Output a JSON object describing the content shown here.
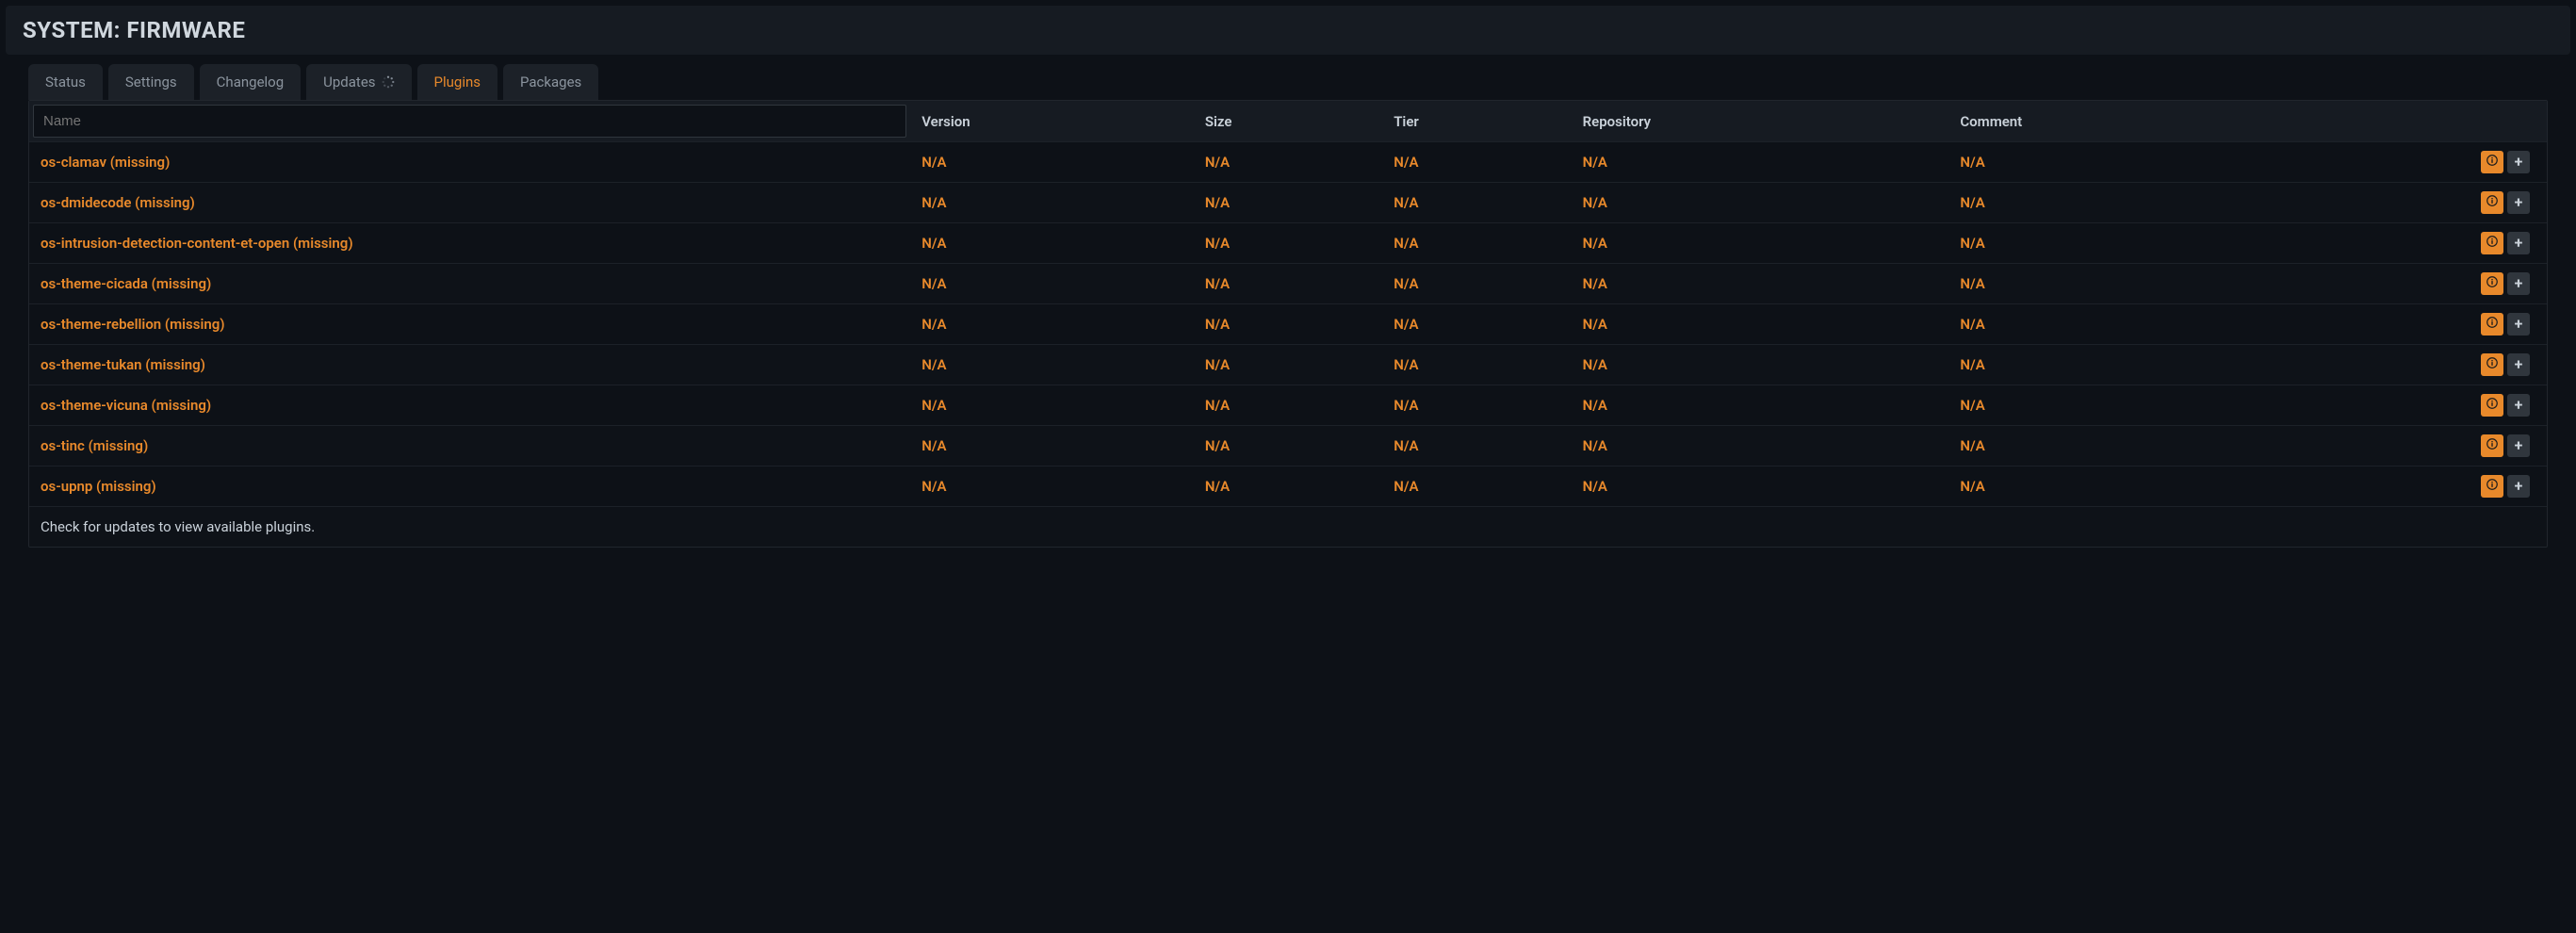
{
  "header": {
    "title": "SYSTEM: FIRMWARE"
  },
  "tabs": [
    {
      "id": "status",
      "label": "Status",
      "active": false,
      "loading": false
    },
    {
      "id": "settings",
      "label": "Settings",
      "active": false,
      "loading": false
    },
    {
      "id": "changelog",
      "label": "Changelog",
      "active": false,
      "loading": false
    },
    {
      "id": "updates",
      "label": "Updates",
      "active": false,
      "loading": true
    },
    {
      "id": "plugins",
      "label": "Plugins",
      "active": true,
      "loading": false
    },
    {
      "id": "packages",
      "label": "Packages",
      "active": false,
      "loading": false
    }
  ],
  "table": {
    "columns": {
      "name": "Name",
      "version": "Version",
      "size": "Size",
      "tier": "Tier",
      "repository": "Repository",
      "comment": "Comment"
    },
    "filter_value": "",
    "rows": [
      {
        "name": "os-clamav (missing)",
        "version": "N/A",
        "size": "N/A",
        "tier": "N/A",
        "repository": "N/A",
        "comment": "N/A"
      },
      {
        "name": "os-dmidecode (missing)",
        "version": "N/A",
        "size": "N/A",
        "tier": "N/A",
        "repository": "N/A",
        "comment": "N/A"
      },
      {
        "name": "os-intrusion-detection-content-et-open (missing)",
        "version": "N/A",
        "size": "N/A",
        "tier": "N/A",
        "repository": "N/A",
        "comment": "N/A"
      },
      {
        "name": "os-theme-cicada (missing)",
        "version": "N/A",
        "size": "N/A",
        "tier": "N/A",
        "repository": "N/A",
        "comment": "N/A"
      },
      {
        "name": "os-theme-rebellion (missing)",
        "version": "N/A",
        "size": "N/A",
        "tier": "N/A",
        "repository": "N/A",
        "comment": "N/A"
      },
      {
        "name": "os-theme-tukan (missing)",
        "version": "N/A",
        "size": "N/A",
        "tier": "N/A",
        "repository": "N/A",
        "comment": "N/A"
      },
      {
        "name": "os-theme-vicuna (missing)",
        "version": "N/A",
        "size": "N/A",
        "tier": "N/A",
        "repository": "N/A",
        "comment": "N/A"
      },
      {
        "name": "os-tinc (missing)",
        "version": "N/A",
        "size": "N/A",
        "tier": "N/A",
        "repository": "N/A",
        "comment": "N/A"
      },
      {
        "name": "os-upnp (missing)",
        "version": "N/A",
        "size": "N/A",
        "tier": "N/A",
        "repository": "N/A",
        "comment": "N/A"
      }
    ],
    "footer": "Check for updates to view available plugins."
  },
  "colors": {
    "accent": "#e8892b",
    "bg": "#0d1117",
    "panel": "#161b22",
    "border": "#21262d",
    "text": "#c9d1d9",
    "muted": "#8b949e"
  }
}
